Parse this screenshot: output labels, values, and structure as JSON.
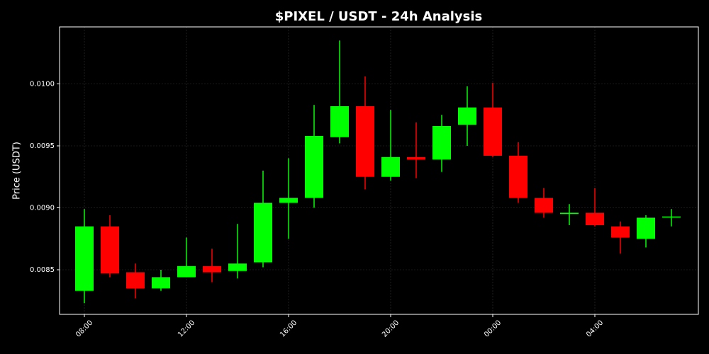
{
  "chart_data": {
    "type": "candlestick",
    "title": "$PIXEL / USDT - 24h Analysis",
    "y_label": "Price (USDT)",
    "categories": [
      "08:00",
      null,
      null,
      null,
      "12:00",
      null,
      null,
      null,
      "16:00",
      null,
      null,
      null,
      "20:00",
      null,
      null,
      null,
      "00:00",
      null,
      null,
      null,
      "04:00",
      null,
      null,
      null
    ],
    "open": [
      0.00833,
      0.00885,
      0.00848,
      0.00835,
      0.00844,
      0.00853,
      0.00849,
      0.00856,
      0.00904,
      0.00908,
      0.00957,
      0.00982,
      0.00925,
      0.00941,
      0.00939,
      0.00967,
      0.00981,
      0.00942,
      0.00908,
      0.00895,
      0.00896,
      0.00885,
      0.00875,
      0.00893
    ],
    "high": [
      0.00899,
      0.00894,
      0.00855,
      0.0085,
      0.00876,
      0.00867,
      0.00887,
      0.0093,
      0.0094,
      0.00983,
      0.01035,
      0.01006,
      0.00979,
      0.00969,
      0.00975,
      0.00998,
      0.01001,
      0.00953,
      0.00916,
      0.00903,
      0.00916,
      0.00889,
      0.00894,
      0.00899
    ],
    "low": [
      0.00823,
      0.00844,
      0.00827,
      0.00833,
      0.00844,
      0.0084,
      0.00843,
      0.00852,
      0.00875,
      0.009,
      0.00952,
      0.00915,
      0.00922,
      0.00924,
      0.00929,
      0.0095,
      0.00941,
      0.00904,
      0.00892,
      0.00886,
      0.00885,
      0.00863,
      0.00868,
      0.00885
    ],
    "close": [
      0.00885,
      0.00847,
      0.00835,
      0.00844,
      0.00853,
      0.00848,
      0.00855,
      0.00904,
      0.00908,
      0.00958,
      0.00982,
      0.00925,
      0.00941,
      0.00939,
      0.00966,
      0.00981,
      0.00942,
      0.00908,
      0.00896,
      0.00896,
      0.00886,
      0.00876,
      0.00892,
      0.00893
    ],
    "up_color": "#00ff00",
    "down_color": "#ff0000",
    "ylim": [
      0.00814,
      0.01046
    ],
    "yticks": [
      0.0085,
      {
        "value": 0.009,
        "label": "0.0090"
      },
      0.0095,
      {
        "value": 0.01,
        "label": "0.0100"
      }
    ],
    "grid": true
  }
}
